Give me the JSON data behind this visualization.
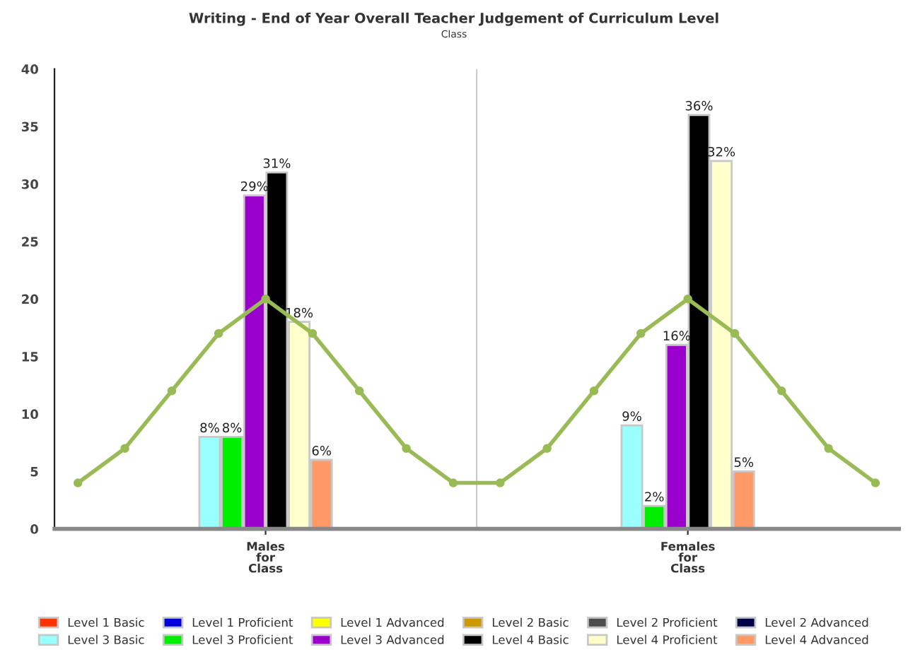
{
  "chart_data": [
    {
      "type": "bar",
      "title": "Writing - End of Year Overall Teacher Judgement of Curriculum Level",
      "subtitle": "Class",
      "categories": [
        "Males\nfor\nClass",
        "Females\nfor\nClass"
      ],
      "series": [
        {
          "name": "Level 1 Basic",
          "color": "#ff3300",
          "values": [
            null,
            null
          ]
        },
        {
          "name": "Level 1 Proficient",
          "color": "#0000dd",
          "values": [
            null,
            null
          ]
        },
        {
          "name": "Level 1 Advanced",
          "color": "#ffff00",
          "values": [
            null,
            null
          ]
        },
        {
          "name": "Level 2 Basic",
          "color": "#cc9900",
          "values": [
            null,
            null
          ]
        },
        {
          "name": "Level 2 Proficient",
          "color": "#4d4d4d",
          "values": [
            null,
            null
          ]
        },
        {
          "name": "Level 2 Advanced",
          "color": "#000044",
          "values": [
            null,
            null
          ]
        },
        {
          "name": "Level 3 Basic",
          "color": "#99ffff",
          "values": [
            8,
            9
          ],
          "value_labels": [
            "8%",
            "9%"
          ]
        },
        {
          "name": "Level 3 Proficient",
          "color": "#00ee00",
          "values": [
            8,
            2
          ],
          "value_labels": [
            "8%",
            "2%"
          ]
        },
        {
          "name": "Level 3 Advanced",
          "color": "#9900cc",
          "values": [
            29,
            16
          ],
          "value_labels": [
            "29%",
            "16%"
          ]
        },
        {
          "name": "Level 4 Basic",
          "color": "#000000",
          "values": [
            31,
            36
          ],
          "value_labels": [
            "31%",
            "36%"
          ]
        },
        {
          "name": "Level 4 Proficient",
          "color": "#ffffcc",
          "values": [
            18,
            32
          ],
          "value_labels": [
            "18%",
            "32%"
          ]
        },
        {
          "name": "Level 4 Advanced",
          "color": "#ff9966",
          "values": [
            6,
            5
          ],
          "value_labels": [
            "6%",
            "5%"
          ]
        }
      ],
      "ylim": [
        0,
        40
      ],
      "yticks": [
        0,
        5,
        10,
        15,
        20,
        25,
        30,
        35,
        40
      ],
      "grid": false,
      "legend": "bottom"
    },
    {
      "type": "line",
      "categories": [
        null,
        null,
        null,
        null,
        null,
        null,
        null,
        null,
        null,
        null,
        null,
        null,
        null,
        null,
        null,
        null,
        null,
        null
      ],
      "series": [
        {
          "color": "#99bb55",
          "values": [
            4,
            7,
            12,
            17,
            20,
            17,
            12,
            7,
            4,
            4,
            7,
            12,
            17,
            20,
            17,
            12,
            7,
            4
          ]
        }
      ],
      "marker": "circle",
      "ylim": [
        0,
        40
      ],
      "tick_labels": false
    }
  ]
}
